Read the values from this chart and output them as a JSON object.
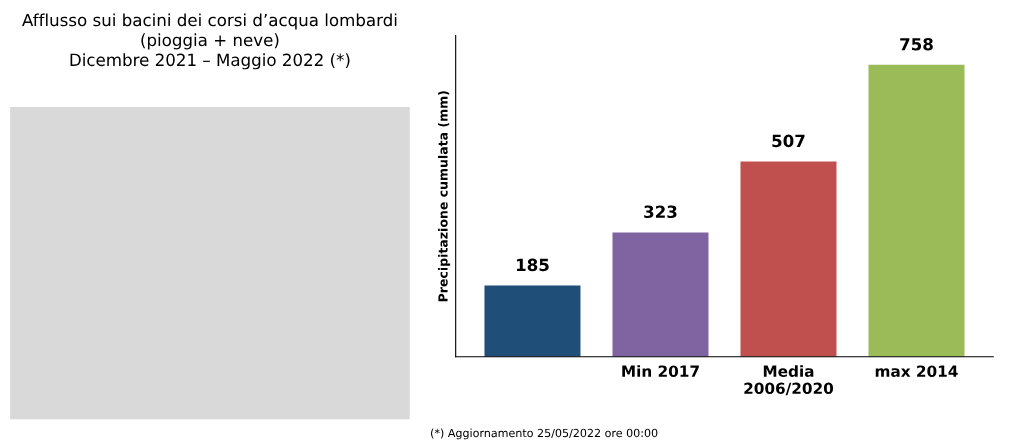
{
  "chart_data": {
    "type": "bar",
    "title": "Afflusso sui bacini dei corsi d’acqua lombardi\n(pioggia + neve)\nDicembre 2021 – Maggio 2022 (*)",
    "ylabel": "Precipitazione cumulata (mm)",
    "categories": [
      null,
      "Min 2017",
      "Media\n2006/2020",
      "max 2014"
    ],
    "values": [
      185,
      323,
      507,
      758
    ],
    "colors": [
      "#1f4e79",
      "#8064a2",
      "#c0504d",
      "#9bbb59"
    ],
    "data_labels": true,
    "annotations": [
      "(*) Aggiornamento 25/05/2022 ore 00:00"
    ]
  }
}
